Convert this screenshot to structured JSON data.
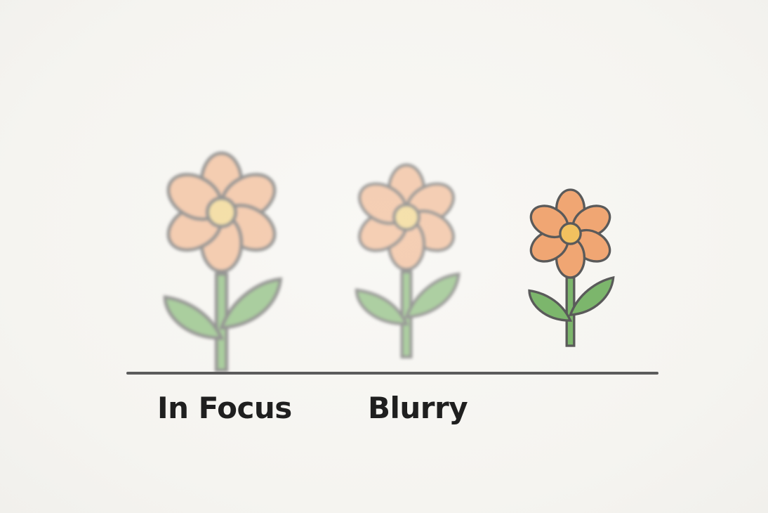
{
  "labels": {
    "first": "In Focus",
    "second": "Blurry"
  },
  "colors": {
    "background": "#f6f5f1",
    "petal": "#f0a673",
    "petal_faded": "#f3b48a",
    "center": "#f2c15f",
    "center_faded": "#f3d27c",
    "leaf": "#7cb66c",
    "stem": "#7cb66c",
    "outline": "#5a5a5a",
    "ground": "#5c5c5c",
    "label_text": "#1f1f1f"
  },
  "icons": [
    "flower-icon",
    "flower-icon",
    "flower-icon"
  ]
}
